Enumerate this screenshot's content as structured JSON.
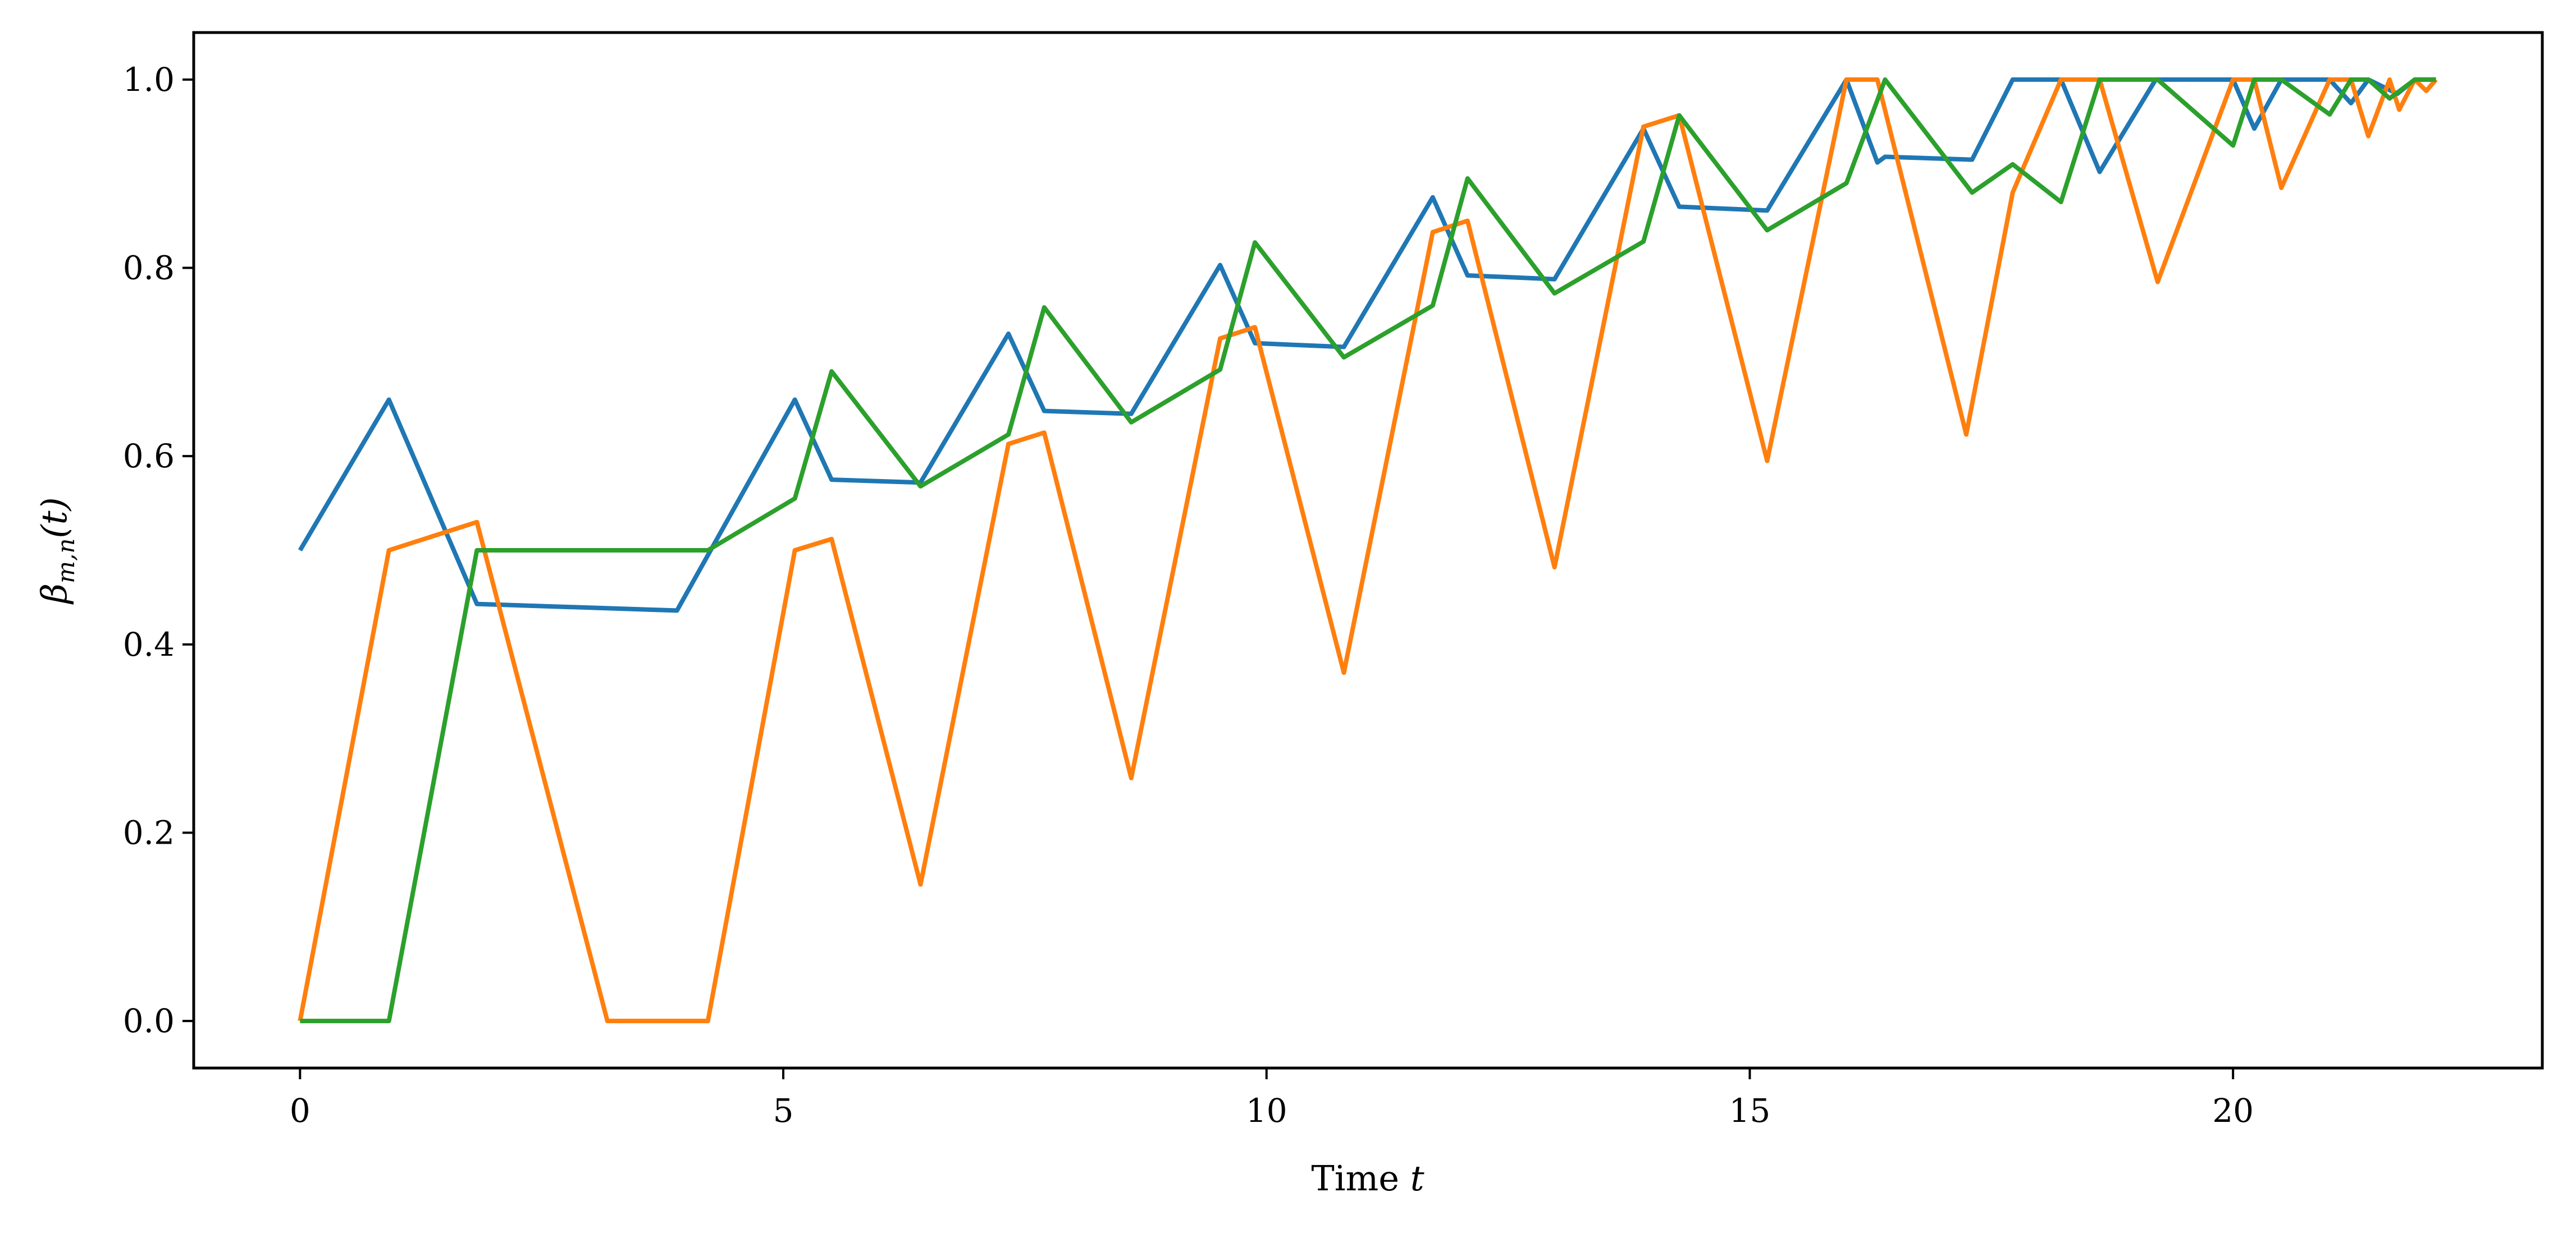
{
  "chart_data": {
    "type": "line",
    "title": "",
    "xlabel": "Time ",
    "xlabel_var": "t",
    "ylabel": "β",
    "ylabel_sub": "m,n",
    "ylabel_tail": "(t)",
    "xlim": [
      -1.1,
      23.2
    ],
    "ylim": [
      -0.05,
      1.05
    ],
    "xticks": [
      0,
      5,
      10,
      15,
      20
    ],
    "yticks": [
      0.0,
      0.2,
      0.4,
      0.6,
      0.8,
      1.0
    ],
    "xtick_labels": [
      "0",
      "5",
      "10",
      "15",
      "20"
    ],
    "ytick_labels": [
      "0.0",
      "0.2",
      "0.4",
      "0.6",
      "0.8",
      "1.0"
    ],
    "grid": false,
    "series": [
      {
        "color": "#1f77b4",
        "x": [
          0,
          0.92,
          1.83,
          3.9,
          5.12,
          5.5,
          6.42,
          7.33,
          7.7,
          8.6,
          9.52,
          9.88,
          10.8,
          11.72,
          12.08,
          12.98,
          13.9,
          14.27,
          15.18,
          16.0,
          16.32,
          16.4,
          17.3,
          17.72,
          18.22,
          18.62,
          19.2,
          20.0,
          20.22,
          20.5,
          21.0,
          21.22,
          21.4,
          21.7,
          21.88,
          22.1
        ],
        "y": [
          0.5,
          0.66,
          0.443,
          0.436,
          0.66,
          0.575,
          0.572,
          0.73,
          0.648,
          0.645,
          0.803,
          0.72,
          0.716,
          0.875,
          0.792,
          0.788,
          0.948,
          0.865,
          0.861,
          1.0,
          0.912,
          0.918,
          0.915,
          1.0,
          1.0,
          0.902,
          1.0,
          1.0,
          0.948,
          1.0,
          1.0,
          0.975,
          1.0,
          0.985,
          1.0,
          1.0
        ]
      },
      {
        "color": "#ff7f0e",
        "x": [
          0,
          0.92,
          1.83,
          3.18,
          4.22,
          5.12,
          5.5,
          6.42,
          7.33,
          7.7,
          8.6,
          9.52,
          9.88,
          10.8,
          11.72,
          12.08,
          12.98,
          13.9,
          14.27,
          15.18,
          16.0,
          16.32,
          17.24,
          17.72,
          18.22,
          18.62,
          19.22,
          20.0,
          20.22,
          20.5,
          21.0,
          21.22,
          21.4,
          21.62,
          21.72,
          21.88,
          22.0,
          22.1
        ],
        "y": [
          0.0,
          0.5,
          0.53,
          0.0,
          0.0,
          0.5,
          0.512,
          0.145,
          0.613,
          0.625,
          0.258,
          0.725,
          0.737,
          0.37,
          0.838,
          0.85,
          0.482,
          0.95,
          0.962,
          0.595,
          1.0,
          1.0,
          0.623,
          0.88,
          1.0,
          1.0,
          0.785,
          1.0,
          1.0,
          0.885,
          1.0,
          1.0,
          0.94,
          1.0,
          0.968,
          1.0,
          0.988,
          1.0
        ]
      },
      {
        "color": "#2ca02c",
        "x": [
          0,
          0.92,
          1.83,
          4.22,
          5.12,
          5.5,
          6.42,
          7.33,
          7.7,
          8.6,
          9.52,
          9.88,
          10.8,
          11.72,
          12.08,
          12.98,
          13.9,
          14.27,
          15.18,
          16.0,
          16.4,
          17.3,
          17.72,
          18.22,
          18.62,
          19.22,
          20.0,
          20.22,
          20.5,
          21.0,
          21.22,
          21.4,
          21.62,
          21.88,
          22.1
        ],
        "y": [
          0.0,
          0.0,
          0.5,
          0.5,
          0.555,
          0.69,
          0.568,
          0.623,
          0.758,
          0.636,
          0.692,
          0.827,
          0.705,
          0.76,
          0.895,
          0.773,
          0.828,
          0.962,
          0.84,
          0.89,
          1.0,
          0.88,
          0.91,
          0.87,
          1.0,
          1.0,
          0.93,
          1.0,
          1.0,
          0.963,
          1.0,
          1.0,
          0.98,
          1.0,
          1.0
        ]
      }
    ]
  }
}
